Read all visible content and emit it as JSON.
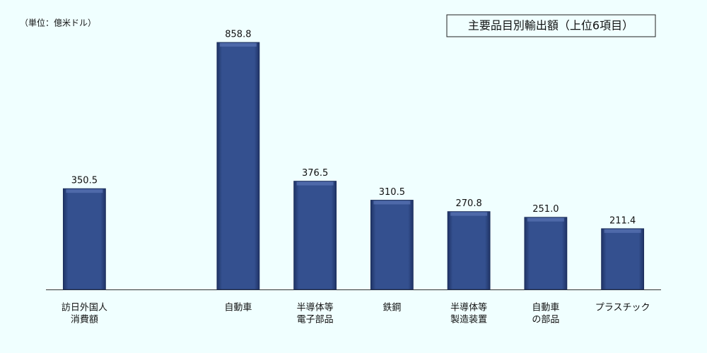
{
  "chart_data": {
    "type": "bar",
    "title": "主要品目別輸出額（上位6項目）",
    "unit_label": "（単位：億米ドル）",
    "categories": [
      [
        "訪日外国人",
        "消費額"
      ],
      null,
      [
        "自動車"
      ],
      [
        "半導体等",
        "電子部品"
      ],
      [
        "鉄鋼"
      ],
      [
        "半導体等",
        "製造装置"
      ],
      [
        "自動車",
        "の部品"
      ],
      [
        "プラスチック"
      ]
    ],
    "values": [
      350.5,
      null,
      858.8,
      376.5,
      310.5,
      270.8,
      251.0,
      211.4
    ],
    "value_labels": [
      "350.5",
      null,
      "858.8",
      "376.5",
      "310.5",
      "270.8",
      "251.0",
      "211.4"
    ],
    "color": "#2f4a85"
  }
}
